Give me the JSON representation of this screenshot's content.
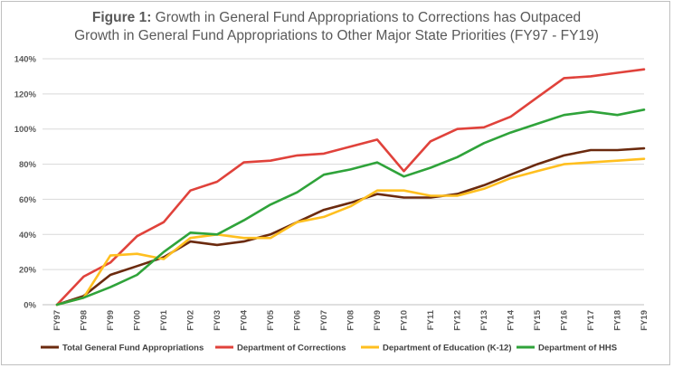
{
  "chart_data": {
    "type": "line",
    "title_bold": "Figure 1:",
    "title_line1": "Growth in General Fund Appropriations to Corrections has Outpaced",
    "title_line2": "Growth in General Fund Appropriations to Other Major State Priorities (FY97 - FY19)",
    "xlabel": "",
    "ylabel": "",
    "ylim": [
      0,
      140
    ],
    "yticks": [
      "0%",
      "20%",
      "40%",
      "60%",
      "80%",
      "100%",
      "120%",
      "140%"
    ],
    "grid": "horizontal",
    "legend_position": "bottom",
    "categories": [
      "FY97",
      "FY98",
      "FY99",
      "FY00",
      "FY01",
      "FY02",
      "FY03",
      "FY04",
      "FY05",
      "FY06",
      "FY07",
      "FY08",
      "FY09",
      "FY10",
      "FY11",
      "FY12",
      "FY13",
      "FY14",
      "FY15",
      "FY16",
      "FY17",
      "FY18",
      "FY19"
    ],
    "series": [
      {
        "name": "Total General Fund Appropriations",
        "color": "#6b2a0e",
        "values": [
          0,
          5,
          17,
          22,
          27,
          36,
          34,
          36,
          40,
          47,
          54,
          58,
          63,
          61,
          61,
          63,
          68,
          74,
          80,
          85,
          88,
          88,
          89
        ]
      },
      {
        "name": "Department of Corrections",
        "color": "#e0423b",
        "values": [
          0,
          16,
          24,
          39,
          47,
          65,
          70,
          81,
          82,
          85,
          86,
          90,
          94,
          76,
          93,
          100,
          101,
          107,
          118,
          129,
          130,
          132,
          134
        ]
      },
      {
        "name": "Department of Education (K-12)",
        "color": "#ffbf1f",
        "values": [
          0,
          4,
          28,
          29,
          26,
          38,
          40,
          38,
          38,
          47,
          50,
          56,
          65,
          65,
          62,
          62,
          66,
          72,
          76,
          80,
          81,
          82,
          83
        ]
      },
      {
        "name": "Department of HHS",
        "color": "#2fa33a",
        "values": [
          0,
          4,
          10,
          17,
          30,
          41,
          40,
          48,
          57,
          64,
          74,
          77,
          81,
          73,
          78,
          84,
          92,
          98,
          103,
          108,
          110,
          108,
          111
        ]
      }
    ]
  }
}
